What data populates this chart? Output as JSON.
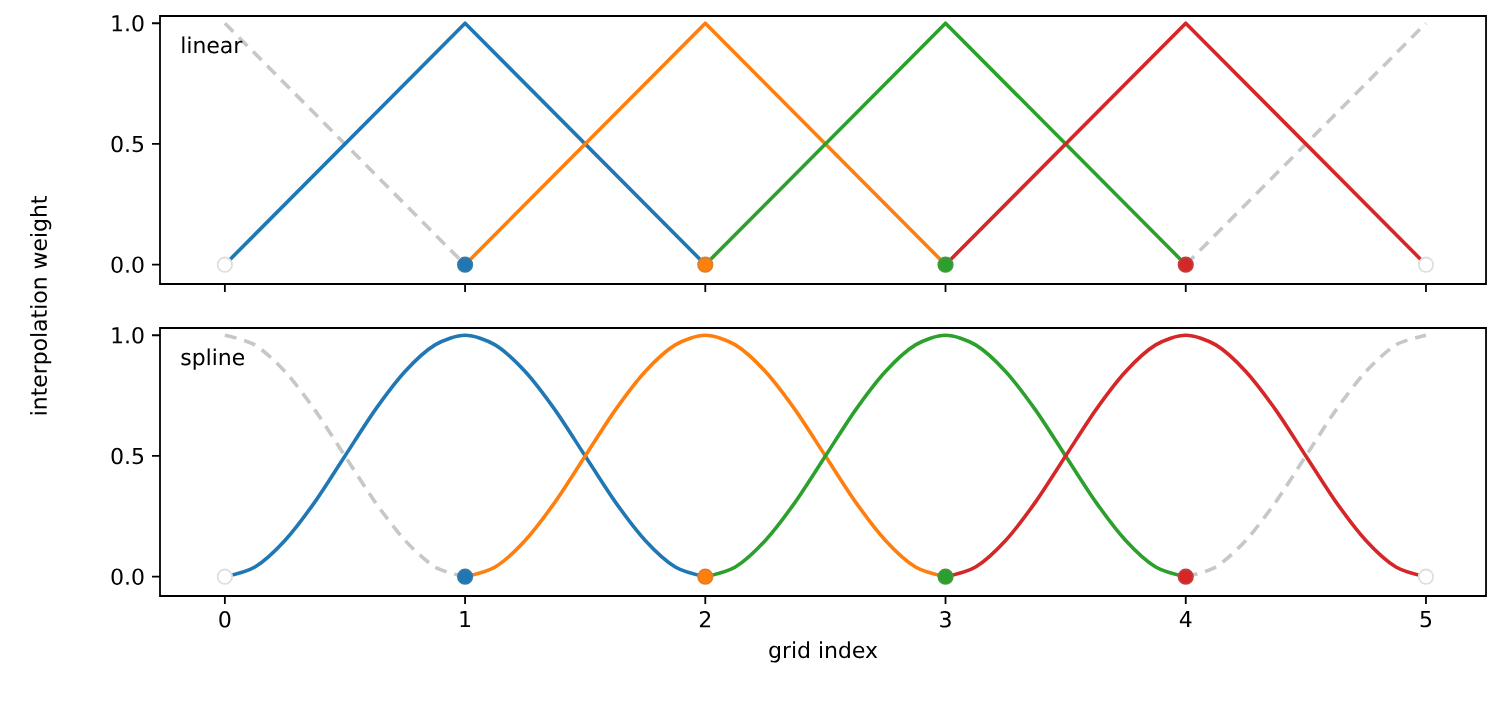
{
  "chart_data": [
    {
      "type": "line",
      "ylabel": "interpolation weight",
      "annotations": [
        "linear"
      ],
      "xlim": [
        -0.27,
        5.25
      ],
      "ylim": [
        -0.08,
        1.03
      ],
      "xticks": [
        0,
        1,
        2,
        3,
        4,
        5
      ],
      "yticks": [
        {
          "value": 0,
          "label": "0.0"
        },
        {
          "value": 0.5,
          "label": "0.5"
        },
        {
          "value": 1,
          "label": "1.0"
        }
      ],
      "tick_labels": "y",
      "series": [
        {
          "color": "#c7c7c7",
          "line_style": "dashed",
          "x": [
            0,
            1
          ],
          "values": [
            1,
            0
          ]
        },
        {
          "color": "#c7c7c7",
          "line_style": "dashed",
          "x": [
            4,
            5
          ],
          "values": [
            0,
            1
          ]
        },
        {
          "color": "#1f77b4",
          "x": [
            0,
            1,
            2
          ],
          "values": [
            0,
            1,
            0
          ]
        },
        {
          "color": "#ff7f0e",
          "x": [
            1,
            2,
            3
          ],
          "values": [
            0,
            1,
            0
          ]
        },
        {
          "color": "#2ca02c",
          "x": [
            2,
            3,
            4
          ],
          "values": [
            0,
            1,
            0
          ]
        },
        {
          "color": "#d62728",
          "x": [
            3,
            4,
            5
          ],
          "values": [
            0,
            1,
            0
          ]
        },
        {
          "type": "scatter",
          "marker": "circle",
          "x": [
            0,
            1,
            2,
            3,
            4,
            5
          ],
          "values": [
            0,
            0,
            0,
            0,
            0,
            0
          ],
          "colors": [
            "#ffffff",
            "#1f77b4",
            "#ff7f0e",
            "#2ca02c",
            "#d62728",
            "#ffffff"
          ]
        }
      ]
    },
    {
      "type": "line",
      "xlabel": "grid index",
      "annotations": [
        "spline"
      ],
      "xlim": [
        -0.27,
        5.25
      ],
      "ylim": [
        -0.08,
        1.03
      ],
      "xticks": [
        0,
        1,
        2,
        3,
        4,
        5
      ],
      "yticks": [
        {
          "value": 0,
          "label": "0.0"
        },
        {
          "value": 0.5,
          "label": "0.5"
        },
        {
          "value": 1,
          "label": "1.0"
        }
      ],
      "series": [
        {
          "color": "#c7c7c7",
          "line_style": "dashed",
          "x": [
            0,
            0.125,
            0.25,
            0.375,
            0.5,
            0.625,
            0.75,
            0.875,
            1
          ],
          "values": [
            1,
            0.96,
            0.85,
            0.69,
            0.5,
            0.31,
            0.15,
            0.04,
            0
          ]
        },
        {
          "color": "#c7c7c7",
          "line_style": "dashed",
          "x": [
            4,
            4.125,
            4.25,
            4.375,
            4.5,
            4.625,
            4.75,
            4.875,
            5
          ],
          "values": [
            0,
            0.04,
            0.15,
            0.31,
            0.5,
            0.69,
            0.85,
            0.96,
            1
          ]
        },
        {
          "color": "#1f77b4",
          "x": [
            0,
            0.125,
            0.25,
            0.375,
            0.5,
            0.625,
            0.75,
            0.875,
            1,
            1.125,
            1.25,
            1.375,
            1.5,
            1.625,
            1.75,
            1.875,
            2
          ],
          "values": [
            0,
            0.04,
            0.15,
            0.31,
            0.5,
            0.69,
            0.85,
            0.96,
            1,
            0.96,
            0.85,
            0.69,
            0.5,
            0.31,
            0.15,
            0.04,
            0
          ]
        },
        {
          "color": "#ff7f0e",
          "x": [
            1,
            1.125,
            1.25,
            1.375,
            1.5,
            1.625,
            1.75,
            1.875,
            2,
            2.125,
            2.25,
            2.375,
            2.5,
            2.625,
            2.75,
            2.875,
            3
          ],
          "values": [
            0,
            0.04,
            0.15,
            0.31,
            0.5,
            0.69,
            0.85,
            0.96,
            1,
            0.96,
            0.85,
            0.69,
            0.5,
            0.31,
            0.15,
            0.04,
            0
          ]
        },
        {
          "color": "#2ca02c",
          "x": [
            2,
            2.125,
            2.25,
            2.375,
            2.5,
            2.625,
            2.75,
            2.875,
            3,
            3.125,
            3.25,
            3.375,
            3.5,
            3.625,
            3.75,
            3.875,
            4
          ],
          "values": [
            0,
            0.04,
            0.15,
            0.31,
            0.5,
            0.69,
            0.85,
            0.96,
            1,
            0.96,
            0.85,
            0.69,
            0.5,
            0.31,
            0.15,
            0.04,
            0
          ]
        },
        {
          "color": "#d62728",
          "x": [
            3,
            3.125,
            3.25,
            3.375,
            3.5,
            3.625,
            3.75,
            3.875,
            4,
            4.125,
            4.25,
            4.375,
            4.5,
            4.625,
            4.75,
            4.875,
            5
          ],
          "values": [
            0,
            0.04,
            0.15,
            0.31,
            0.5,
            0.69,
            0.85,
            0.96,
            1,
            0.96,
            0.85,
            0.69,
            0.5,
            0.31,
            0.15,
            0.04,
            0
          ]
        },
        {
          "type": "scatter",
          "marker": "circle",
          "x": [
            0,
            1,
            2,
            3,
            4,
            5
          ],
          "values": [
            0,
            0,
            0,
            0,
            0,
            0
          ],
          "colors": [
            "#ffffff",
            "#1f77b4",
            "#ff7f0e",
            "#2ca02c",
            "#d62728",
            "#ffffff"
          ]
        }
      ]
    }
  ]
}
